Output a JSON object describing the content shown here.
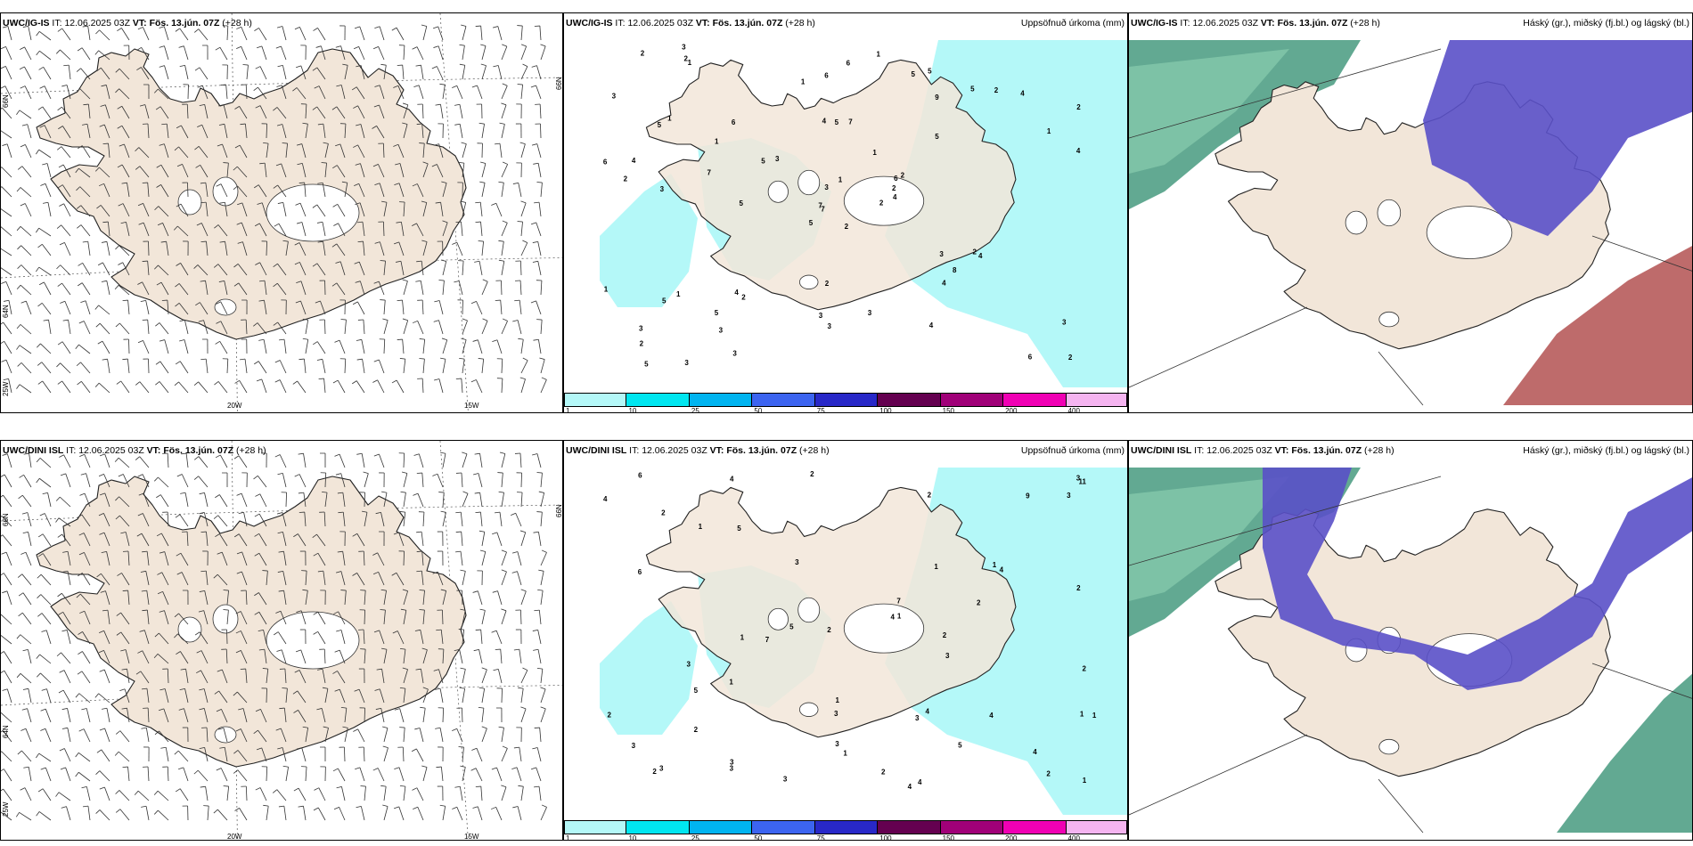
{
  "rows": [
    {
      "model": "UWC/IG-IS",
      "it_label": "IT:",
      "it_value": "12.06.2025 03Z",
      "vt_label": "VT:",
      "vt_value": "Fös. 13.jún. 07Z",
      "lead": "(+28 h)"
    },
    {
      "model": "UWC/DINI ISL",
      "it_label": "IT:",
      "it_value": "12.06.2025 03Z",
      "vt_label": "VT:",
      "vt_value": "Fös. 13.jún. 07Z",
      "lead": "(+28 h)"
    }
  ],
  "panel_titles": {
    "precip": "Uppsöfnuð úrkoma (mm)",
    "cloud": "Háský (gr.), miðský (fj.bl.) og lágský (bl.)"
  },
  "grid_labels": {
    "lat_66": "66N",
    "lat_64": "64N",
    "lon_25": "25W",
    "lon_20": "20W",
    "lon_15": "15W"
  },
  "colorbar": {
    "labels": [
      "1",
      "10",
      "25",
      "50",
      "75",
      "100",
      "150",
      "200",
      "400"
    ],
    "colors": [
      "#b4f8f8",
      "#00e6f0",
      "#00b4f0",
      "#3c64f0",
      "#2828c8",
      "#640050",
      "#a00078",
      "#f000b4",
      "#f5b4f0"
    ]
  },
  "colors": {
    "land": "#f2e6d9",
    "precip_light": "#b4f8f8",
    "cloud_high": "#5a50c8",
    "cloud_mid": "#2e8c6e",
    "cloud_low": "#a83a3a"
  },
  "precip_numbers_top": [
    "2",
    "5",
    "7",
    "3",
    "6",
    "2",
    "5",
    "7",
    "9",
    "2",
    "1",
    "2",
    "3",
    "2",
    "5",
    "5",
    "3",
    "4",
    "1",
    "1",
    "3",
    "2",
    "3",
    "5",
    "2",
    "4",
    "1",
    "6",
    "2",
    "3",
    "4",
    "7",
    "3",
    "3",
    "6",
    "5",
    "4",
    "6",
    "3",
    "2",
    "1",
    "5",
    "7",
    "4",
    "3",
    "6",
    "2",
    "5",
    "3",
    "4",
    "5",
    "1",
    "3",
    "8",
    "4",
    "5",
    "2",
    "2",
    "3",
    "4",
    "6",
    "5",
    "4",
    "1",
    "2",
    "3",
    "5",
    "1",
    "1",
    "1",
    "2"
  ],
  "precip_numbers_bottom": [
    "3",
    "4",
    "3",
    "5",
    "4",
    "2",
    "1",
    "2",
    "2",
    "3",
    "9",
    "1",
    "5",
    "3",
    "2",
    "4",
    "6",
    "3",
    "7",
    "4",
    "3",
    "11",
    "7",
    "2",
    "4",
    "3",
    "2",
    "5",
    "6",
    "3",
    "2",
    "4",
    "1",
    "3",
    "2",
    "2",
    "1",
    "3",
    "1",
    "4",
    "1",
    "2",
    "1",
    "3",
    "5",
    "4",
    "2",
    "2",
    "1",
    "3",
    "3",
    "2",
    "1",
    "4",
    "1",
    "1"
  ]
}
